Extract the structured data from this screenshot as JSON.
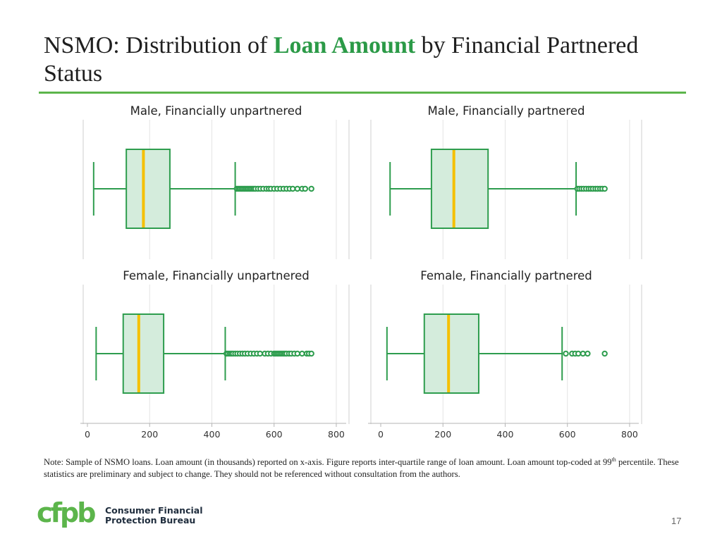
{
  "title": {
    "prefix": "NSMO: Distribution of ",
    "highlight": "Loan Amount",
    "suffix": " by Financial Partnered Status"
  },
  "colors": {
    "accent": "#2b9a47",
    "rule": "#5cb54b",
    "box_stroke": "#2e9d4e",
    "box_fill": "#d4ecdc",
    "median": "#f5c000"
  },
  "note": {
    "part1": "Note: Sample of NSMO loans. Loan amount (in thousands) reported on x-axis. Figure reports inter-quartile range of loan amount. Loan amount top-coded at 99",
    "sup": "th",
    "part2": " percentile. These statistics are preliminary and subject to change. They should not be referenced without consultation from the authors."
  },
  "logo": {
    "mark": "cfpb",
    "line1": "Consumer Financial",
    "line2": "Protection Bureau"
  },
  "page_number": "17",
  "chart_data": {
    "type": "boxplot",
    "orientation": "horizontal",
    "xlim": [
      -5,
      815
    ],
    "xticks": [
      0,
      200,
      400,
      600,
      800
    ],
    "xlabel": "",
    "grid": true,
    "panels": [
      {
        "title": "Male, Financially unpartnered",
        "whisker_low": 20,
        "q1": 125,
        "median": 180,
        "q3": 265,
        "whisker_high": 475,
        "outliers": [
          480,
          485,
          490,
          495,
          500,
          505,
          510,
          515,
          520,
          525,
          530,
          535,
          540,
          548,
          556,
          565,
          575,
          583,
          590,
          600,
          610,
          620,
          630,
          640,
          650,
          660,
          675,
          690,
          700,
          720
        ]
      },
      {
        "title": "Male, Financially partnered",
        "whisker_low": 30,
        "q1": 163,
        "median": 235,
        "q3": 345,
        "whisker_high": 628,
        "outliers": [
          632,
          638,
          645,
          652,
          660,
          668,
          675,
          682,
          690,
          697,
          705,
          712,
          720
        ]
      },
      {
        "title": "Female, Financially unpartnered",
        "whisker_low": 28,
        "q1": 115,
        "median": 165,
        "q3": 245,
        "whisker_high": 443,
        "outliers": [
          447,
          452,
          458,
          463,
          468,
          475,
          482,
          490,
          498,
          506,
          515,
          525,
          535,
          545,
          555,
          570,
          580,
          590,
          600,
          605,
          610,
          615,
          620,
          625,
          630,
          635,
          640,
          648,
          655,
          665,
          675,
          690,
          705,
          712,
          720
        ]
      },
      {
        "title": "Female, Financially partnered",
        "whisker_low": 20,
        "q1": 140,
        "median": 218,
        "q3": 315,
        "whisker_high": 583,
        "outliers": [
          595,
          615,
          625,
          635,
          650,
          665,
          720
        ]
      }
    ]
  }
}
